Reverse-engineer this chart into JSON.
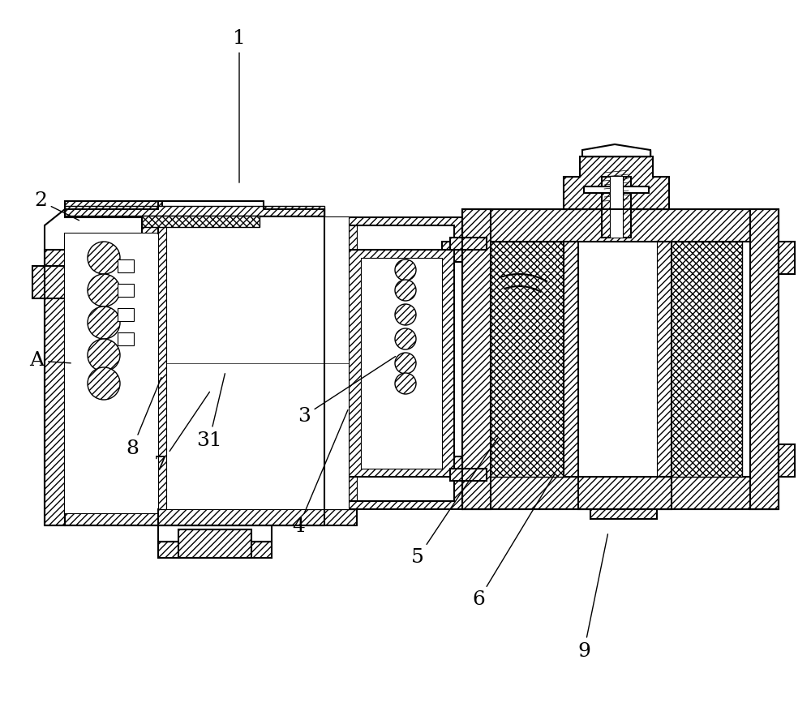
{
  "background_color": "#ffffff",
  "line_color": "#000000",
  "label_fontsize": 18,
  "figsize": [
    10.0,
    8.88
  ],
  "dpi": 100,
  "labels": {
    "1": [
      295,
      840,
      295,
      660
    ],
    "2": [
      50,
      640,
      100,
      615
    ],
    "3": [
      375,
      375,
      490,
      450
    ],
    "31": [
      258,
      345,
      278,
      430
    ],
    "4": [
      368,
      238,
      430,
      385
    ],
    "5": [
      515,
      200,
      615,
      350
    ],
    "6": [
      590,
      148,
      685,
      305
    ],
    "7": [
      198,
      315,
      260,
      407
    ],
    "8": [
      163,
      335,
      200,
      425
    ],
    "9": [
      720,
      85,
      750,
      232
    ],
    "A": [
      45,
      443,
      90,
      440
    ]
  }
}
